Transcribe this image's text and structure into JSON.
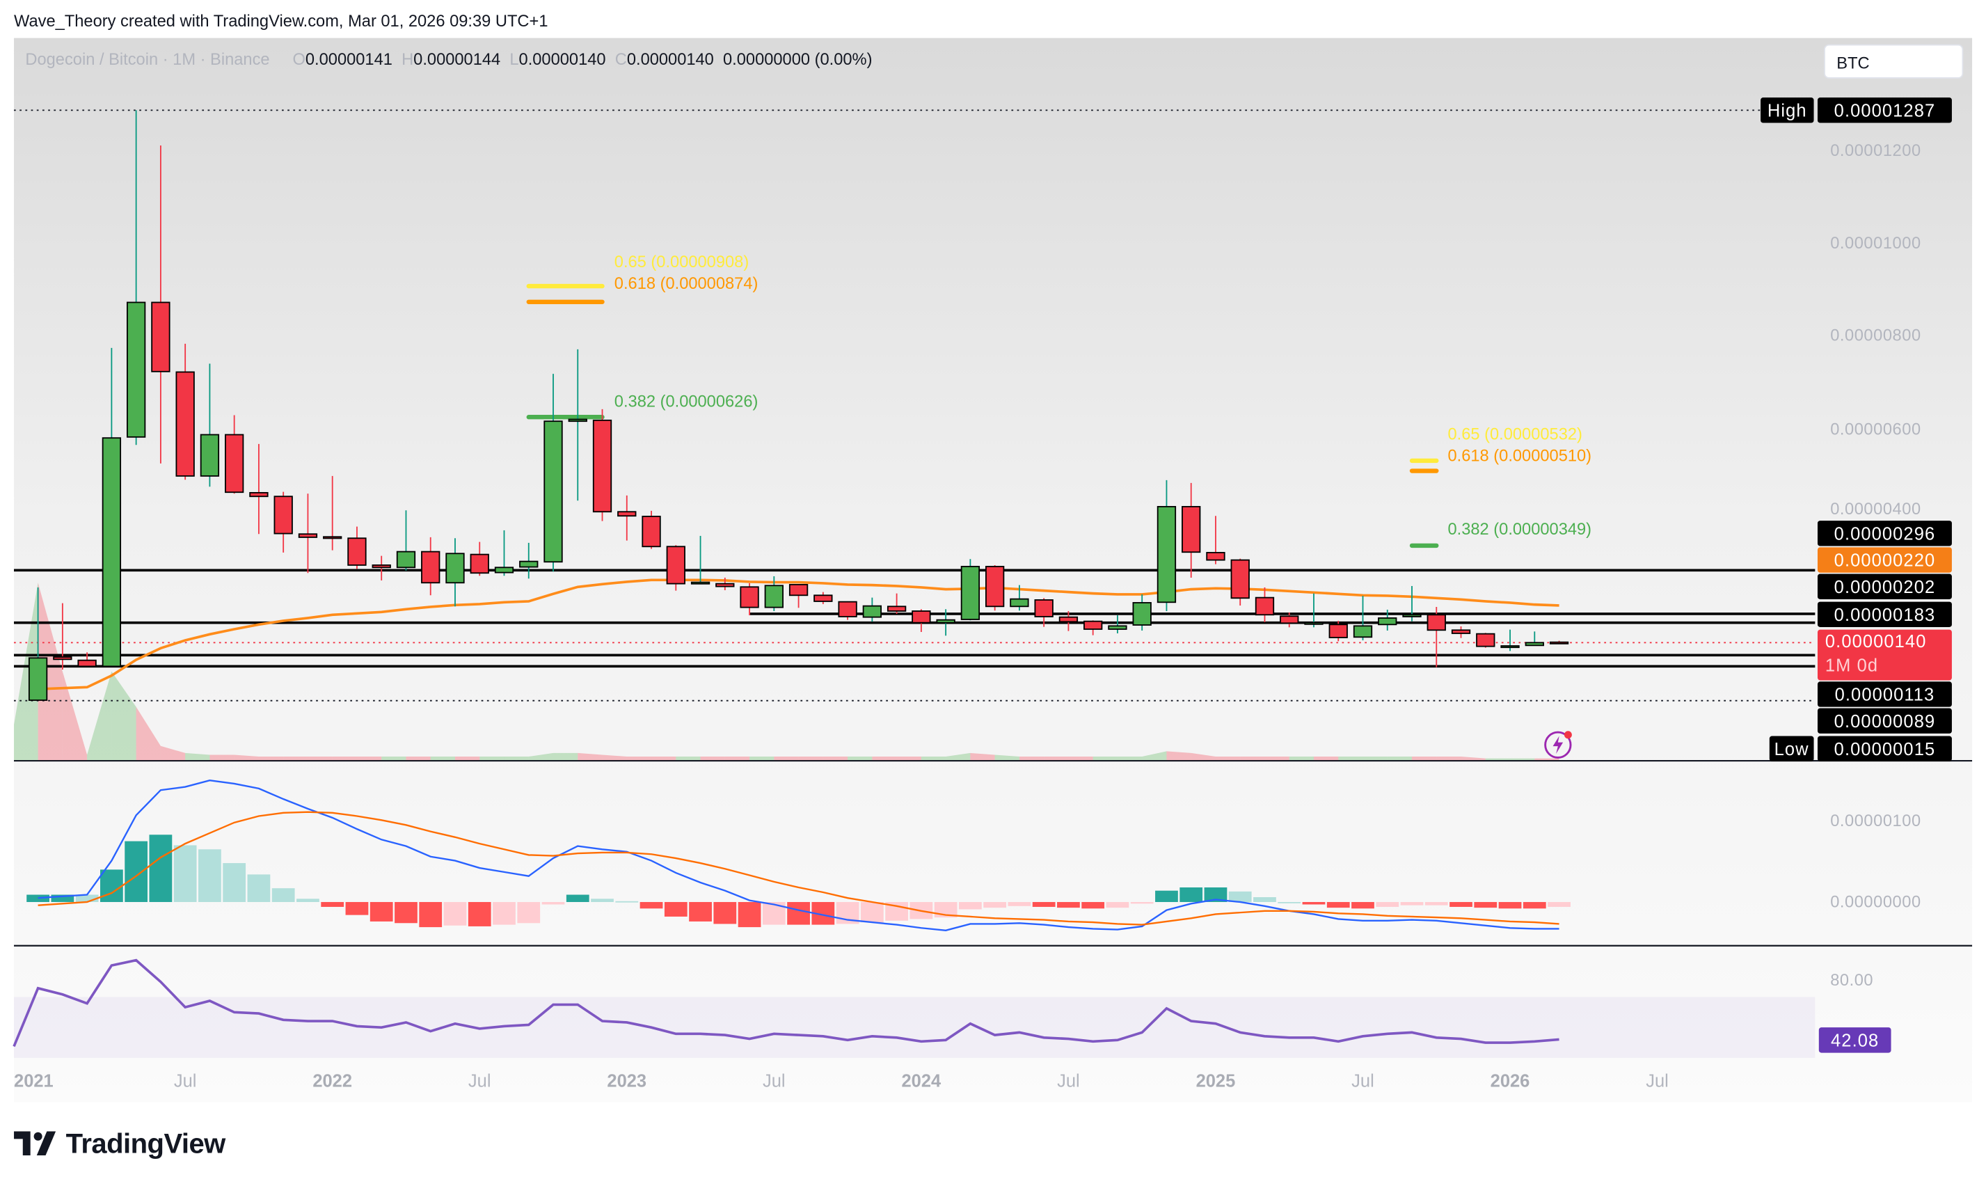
{
  "header": {
    "credit": "Wave_Theory created with TradingView.com, Mar 01, 2026 09:39 UTC+1",
    "symbol": "Dogecoin / Bitcoin · 1M · Binance",
    "ohlc": {
      "o_label": "O",
      "o": "0.00000141",
      "h_label": "H",
      "h": "0.00000144",
      "l_label": "L",
      "l": "0.00000140",
      "c_label": "C",
      "c": "0.00000140",
      "change": "0.00000000 (0.00%)"
    },
    "currency": "BTC"
  },
  "colors": {
    "up": "#4caf50",
    "down": "#f23645",
    "up_wick": "#089981",
    "down_wick": "#f23645",
    "sma": "#ff8c1a",
    "macd": "#2962ff",
    "signal": "#ff6d00",
    "rsi": "#7e57c2",
    "fib_065": "#ffeb3b",
    "fib_0618": "#ff9800",
    "fib_0382": "#4caf50"
  },
  "price_axis": {
    "ticks": [
      "0.00001200",
      "0.00001000",
      "0.00000800",
      "0.00000600",
      "0.00000400"
    ],
    "high_label": "High",
    "high": "0.00001287",
    "low_label": "Low",
    "low": "0.00000015",
    "tags": {
      "t296": "0.00000296",
      "sma": "0.00000220",
      "t202": "0.00000202",
      "t183": "0.00000183",
      "last": "0.00000140",
      "countdown": "1M 0d",
      "t113": "0.00000113",
      "t089": "0.00000089"
    }
  },
  "levels": [
    {
      "value": 2.96e-06
    },
    {
      "value": 2.02e-06,
      "from": "2023-06"
    },
    {
      "value": 1.83e-06
    },
    {
      "value": 1.13e-06
    },
    {
      "value": 8.9e-07
    }
  ],
  "fib_sets": [
    {
      "from": "2022-09",
      "to": "2022-12",
      "levels": [
        {
          "ratio": "0.65",
          "value": 9.08e-06,
          "label": "0.65 (0.00000908)",
          "color": "#ffeb3b"
        },
        {
          "ratio": "0.618",
          "value": 8.74e-06,
          "label": "0.618 (0.00000874)",
          "color": "#ff9800"
        },
        {
          "ratio": "0.382",
          "value": 6.26e-06,
          "label": "0.382 (0.00000626)",
          "color": "#4caf50"
        }
      ]
    },
    {
      "from": "2025-09",
      "to": "2025-10",
      "levels": [
        {
          "ratio": "0.65",
          "value": 5.32e-06,
          "label": "0.65 (0.00000532)",
          "color": "#ffeb3b"
        },
        {
          "ratio": "0.618",
          "value": 5.1e-06,
          "label": "0.618 (0.00000510)",
          "color": "#ff9800"
        },
        {
          "ratio": "0.382",
          "value": 3.49e-06,
          "label": "0.382 (0.00000349)",
          "color": "#4caf50"
        }
      ]
    }
  ],
  "macd_axis": {
    "ticks": [
      "0.00000100",
      "0.00000000"
    ]
  },
  "rsi_axis": {
    "tick": "80.00",
    "last": "42.08",
    "band": [
      30,
      70
    ]
  },
  "time_axis": {
    "ticks": [
      "2021",
      "Jul",
      "2022",
      "Jul",
      "2023",
      "Jul",
      "2024",
      "Jul",
      "2025",
      "Jul",
      "2026",
      "Jul"
    ]
  },
  "footer": {
    "logo": "TradingView"
  },
  "chart_data": {
    "type": "candlestick",
    "interval": "1M",
    "fields": [
      "date",
      "open",
      "high",
      "low",
      "close"
    ],
    "candles": [
      [
        "2021-01",
        1.6e-07,
        2.59e-06,
        1.5e-07,
        1.07e-06
      ],
      [
        "2021-02",
        1.09e-06,
        2.25e-06,
        8.2e-07,
        1.04e-06
      ],
      [
        "2021-03",
        1.02e-06,
        1.19e-06,
        8.9e-07,
        8.9e-07
      ],
      [
        "2021-04",
        8.9e-07,
        7.75e-06,
        8.9e-07,
        5.81e-06
      ],
      [
        "2021-05",
        5.83e-06,
        1.287e-05,
        5.66e-06,
        8.73e-06
      ],
      [
        "2021-06",
        8.73e-06,
        1.211e-05,
        5.26e-06,
        7.24e-06
      ],
      [
        "2021-07",
        7.23e-06,
        7.84e-06,
        4.91e-06,
        4.99e-06
      ],
      [
        "2021-08",
        4.99e-06,
        7.41e-06,
        4.76e-06,
        5.88e-06
      ],
      [
        "2021-09",
        5.88e-06,
        6.3e-06,
        4.61e-06,
        4.64e-06
      ],
      [
        "2021-10",
        4.63e-06,
        5.68e-06,
        3.74e-06,
        4.55e-06
      ],
      [
        "2021-11",
        4.55e-06,
        4.65e-06,
        3.34e-06,
        3.75e-06
      ],
      [
        "2021-12",
        3.74e-06,
        4.61e-06,
        2.9e-06,
        3.67e-06
      ],
      [
        "2022-01",
        3.68e-06,
        4.99e-06,
        3.39e-06,
        3.67e-06
      ],
      [
        "2022-02",
        3.65e-06,
        3.9e-06,
        2.99e-06,
        3.07e-06
      ],
      [
        "2022-03",
        3.07e-06,
        3.27e-06,
        2.74e-06,
        3.02e-06
      ],
      [
        "2022-04",
        3.02e-06,
        4.25e-06,
        2.95e-06,
        3.36e-06
      ],
      [
        "2022-05",
        3.36e-06,
        3.67e-06,
        2.42e-06,
        2.69e-06
      ],
      [
        "2022-06",
        2.69e-06,
        3.65e-06,
        2.18e-06,
        3.32e-06
      ],
      [
        "2022-07",
        3.3e-06,
        3.57e-06,
        2.84e-06,
        2.9e-06
      ],
      [
        "2022-08",
        2.91e-06,
        3.82e-06,
        2.84e-06,
        3.02e-06
      ],
      [
        "2022-09",
        3.03e-06,
        3.55e-06,
        2.78e-06,
        3.15e-06
      ],
      [
        "2022-10",
        3.14e-06,
        7.19e-06,
        2.93e-06,
        6.17e-06
      ],
      [
        "2022-11",
        6.17e-06,
        7.72e-06,
        4.46e-06,
        6.21e-06
      ],
      [
        "2022-12",
        6.19e-06,
        6.43e-06,
        4.02e-06,
        4.22e-06
      ],
      [
        "2023-01",
        4.22e-06,
        4.57e-06,
        3.6e-06,
        4.13e-06
      ],
      [
        "2023-02",
        4.12e-06,
        4.24e-06,
        3.42e-06,
        3.47e-06
      ],
      [
        "2023-03",
        3.47e-06,
        3.5e-06,
        2.52e-06,
        2.67e-06
      ],
      [
        "2023-04",
        2.69e-06,
        3.7e-06,
        2.66e-06,
        2.7e-06
      ],
      [
        "2023-05",
        2.67e-06,
        2.8e-06,
        2.53e-06,
        2.61e-06
      ],
      [
        "2023-06",
        2.6e-06,
        2.68e-06,
        1.99e-06,
        2.16e-06
      ],
      [
        "2023-07",
        2.16e-06,
        2.83e-06,
        2.08e-06,
        2.63e-06
      ],
      [
        "2023-08",
        2.65e-06,
        2.66e-06,
        2.15e-06,
        2.42e-06
      ],
      [
        "2023-09",
        2.42e-06,
        2.49e-06,
        2.23e-06,
        2.29e-06
      ],
      [
        "2023-10",
        2.28e-06,
        2.29e-06,
        1.89e-06,
        1.96e-06
      ],
      [
        "2023-11",
        1.95e-06,
        2.37e-06,
        1.85e-06,
        2.19e-06
      ],
      [
        "2023-12",
        2.18e-06,
        2.46e-06,
        2.02e-06,
        2.08e-06
      ],
      [
        "2024-01",
        2.08e-06,
        2.12e-06,
        1.63e-06,
        1.83e-06
      ],
      [
        "2024-02",
        1.83e-06,
        2.12e-06,
        1.55e-06,
        1.89e-06
      ],
      [
        "2024-03",
        1.9e-06,
        3.2e-06,
        1.88e-06,
        3.04e-06
      ],
      [
        "2024-04",
        3.04e-06,
        3.07e-06,
        2.09e-06,
        2.18e-06
      ],
      [
        "2024-05",
        2.18e-06,
        2.64e-06,
        2.09e-06,
        2.34e-06
      ],
      [
        "2024-06",
        2.32e-06,
        2.36e-06,
        1.74e-06,
        1.96e-06
      ],
      [
        "2024-07",
        1.95e-06,
        2.08e-06,
        1.65e-06,
        1.85e-06
      ],
      [
        "2024-08",
        1.86e-06,
        1.88e-06,
        1.56e-06,
        1.69e-06
      ],
      [
        "2024-09",
        1.69e-06,
        1.99e-06,
        1.6e-06,
        1.76e-06
      ],
      [
        "2024-10",
        1.78e-06,
        2.44e-06,
        1.66e-06,
        2.26e-06
      ],
      [
        "2024-11",
        2.27e-06,
        4.9e-06,
        2.08e-06,
        4.33e-06
      ],
      [
        "2024-12",
        4.33e-06,
        4.84e-06,
        2.8e-06,
        3.35e-06
      ],
      [
        "2025-01",
        3.34e-06,
        4.13e-06,
        3.09e-06,
        3.18e-06
      ],
      [
        "2025-02",
        3.18e-06,
        3.21e-06,
        2.2e-06,
        2.36e-06
      ],
      [
        "2025-03",
        2.37e-06,
        2.59e-06,
        1.84e-06,
        2e-06
      ],
      [
        "2025-04",
        1.97e-06,
        2.05e-06,
        1.73e-06,
        1.82e-06
      ],
      [
        "2025-05",
        1.82e-06,
        2.46e-06,
        1.73e-06,
        1.83e-06
      ],
      [
        "2025-06",
        1.79e-06,
        1.87e-06,
        1.43e-06,
        1.51e-06
      ],
      [
        "2025-07",
        1.52e-06,
        2.41e-06,
        1.45e-06,
        1.76e-06
      ],
      [
        "2025-08",
        1.79e-06,
        2.11e-06,
        1.66e-06,
        1.93e-06
      ],
      [
        "2025-09",
        1.96e-06,
        2.62e-06,
        1.86e-06,
        2e-06
      ],
      [
        "2025-10",
        2e-06,
        2.17e-06,
        8.7e-07,
        1.67e-06
      ],
      [
        "2025-11",
        1.67e-06,
        1.75e-06,
        1.5e-06,
        1.6e-06
      ],
      [
        "2025-12",
        1.59e-06,
        1.61e-06,
        1.29e-06,
        1.32e-06
      ],
      [
        "2026-01",
        1.33e-06,
        1.68e-06,
        1.22e-06,
        1.33e-06
      ],
      [
        "2026-02",
        1.34e-06,
        1.64e-06,
        1.34e-06,
        1.4e-06
      ],
      [
        "2026-03",
        1.41e-06,
        1.44e-06,
        1.4e-06,
        1.4e-06
      ]
    ],
    "sma": [
      4e-07,
      4.2e-07,
      4.4e-07,
      6.9e-07,
      1.03e-06,
      1.28e-06,
      1.45e-06,
      1.58e-06,
      1.69e-06,
      1.79e-06,
      1.87e-06,
      1.93e-06,
      2e-06,
      2.03e-06,
      2.06e-06,
      2.12e-06,
      2.17e-06,
      2.21e-06,
      2.23e-06,
      2.27e-06,
      2.29e-06,
      2.45e-06,
      2.6e-06,
      2.66e-06,
      2.71e-06,
      2.75e-06,
      2.75e-06,
      2.75e-06,
      2.74e-06,
      2.71e-06,
      2.7e-06,
      2.7e-06,
      2.68e-06,
      2.65e-06,
      2.64e-06,
      2.62e-06,
      2.59e-06,
      2.55e-06,
      2.56e-06,
      2.58e-06,
      2.55e-06,
      2.52e-06,
      2.49e-06,
      2.46e-06,
      2.44e-06,
      2.44e-06,
      2.49e-06,
      2.55e-06,
      2.57e-06,
      2.56e-06,
      2.54e-06,
      2.51e-06,
      2.48e-06,
      2.45e-06,
      2.42e-06,
      2.41e-06,
      2.39e-06,
      2.36e-06,
      2.33e-06,
      2.29e-06,
      2.26e-06,
      2.22e-06,
      2.2e-06
    ],
    "volume_relative": [
      1.0,
      0.5,
      0.03,
      0.5,
      0.3,
      0.08,
      0.04,
      0.03,
      0.03,
      0.02,
      0.02,
      0.02,
      0.02,
      0.02,
      0.02,
      0.02,
      0.02,
      0.02,
      0.02,
      0.02,
      0.02,
      0.04,
      0.04,
      0.03,
      0.02,
      0.02,
      0.02,
      0.02,
      0.02,
      0.02,
      0.02,
      0.02,
      0.02,
      0.02,
      0.02,
      0.02,
      0.02,
      0.02,
      0.04,
      0.03,
      0.02,
      0.02,
      0.02,
      0.02,
      0.02,
      0.02,
      0.05,
      0.04,
      0.02,
      0.02,
      0.02,
      0.02,
      0.02,
      0.02,
      0.02,
      0.02,
      0.02,
      0.02,
      0.02,
      0.01,
      0.01,
      0.01,
      0.01
    ],
    "macd": [
      5e-08,
      7e-08,
      9e-08,
      5.1e-07,
      1.07e-06,
      1.38e-06,
      1.42e-06,
      1.5e-06,
      1.46e-06,
      1.4e-06,
      1.27e-06,
      1.15e-06,
      1.04e-06,
      9e-07,
      7.7e-07,
      6.9e-07,
      5.6e-07,
      5.1e-07,
      4.2e-07,
      3.7e-07,
      3.2e-07,
      5.4e-07,
      6.9e-07,
      6.5e-07,
      6.2e-07,
      5.1e-07,
      3.6e-07,
      2.4e-07,
      1.4e-07,
      2e-08,
      -3e-08,
      -1e-07,
      -1.6e-07,
      -2.2e-07,
      -2.5e-07,
      -2.8e-07,
      -3.2e-07,
      -3.5e-07,
      -2.7e-07,
      -2.7e-07,
      -2.6e-07,
      -2.8e-07,
      -3.1e-07,
      -3.3e-07,
      -3.4e-07,
      -3e-07,
      -1e-07,
      -2e-08,
      3e-08,
      0,
      -5e-08,
      -1.1e-07,
      -1.5e-07,
      -2.1e-07,
      -2.3e-07,
      -2.3e-07,
      -2.2e-07,
      -2.3e-07,
      -2.6e-07,
      -2.9e-07,
      -3.2e-07,
      -3.3e-07,
      -3.3e-07
    ],
    "signal": [
      -4e-08,
      -2e-08,
      0,
      1.1e-07,
      3.2e-07,
      5.5e-07,
      7.2e-07,
      8.5e-07,
      9.8e-07,
      1.06e-06,
      1.1e-06,
      1.11e-06,
      1.1e-06,
      1.06e-06,
      1.01e-06,
      9.5e-07,
      8.7e-07,
      8e-07,
      7.2e-07,
      6.5e-07,
      5.8e-07,
      5.7e-07,
      6e-07,
      6.1e-07,
      6.1e-07,
      5.9e-07,
      5.4e-07,
      4.8e-07,
      4.1e-07,
      3.3e-07,
      2.5e-07,
      1.8e-07,
      1.2e-07,
      5e-08,
      0,
      -5e-08,
      -1.1e-07,
      -1.6e-07,
      -1.8e-07,
      -2e-07,
      -2.1e-07,
      -2.2e-07,
      -2.4e-07,
      -2.5e-07,
      -2.7e-07,
      -2.8e-07,
      -2.4e-07,
      -2e-07,
      -1.5e-07,
      -1.3e-07,
      -1.1e-07,
      -1.1e-07,
      -1.2e-07,
      -1.4e-07,
      -1.5e-07,
      -1.7e-07,
      -1.8e-07,
      -1.9e-07,
      -2e-07,
      -2.2e-07,
      -2.4e-07,
      -2.5e-07,
      -2.7e-07
    ],
    "rsi": [
      75.8,
      71.7,
      65.8,
      90.8,
      94.2,
      80,
      63.3,
      67.5,
      60,
      59.2,
      55,
      54.2,
      54.2,
      50.8,
      50,
      53.3,
      47.5,
      52.5,
      49.2,
      50.8,
      51.7,
      65,
      65,
      54.2,
      53.3,
      50,
      45.8,
      45.8,
      45,
      42.5,
      45.8,
      45,
      44.2,
      41.7,
      44.2,
      43.3,
      40.8,
      41.7,
      52.5,
      45,
      46.7,
      43.3,
      42.5,
      40.8,
      41.7,
      46.7,
      62.5,
      54.2,
      52.5,
      46.7,
      44.2,
      43.3,
      43.3,
      40.8,
      44.2,
      45.8,
      46.7,
      43.3,
      42.5,
      40,
      40,
      40.8,
      42.08
    ],
    "ylim": [
      1.5e-07,
      1.287e-05
    ],
    "last_price": 1.4e-06
  }
}
